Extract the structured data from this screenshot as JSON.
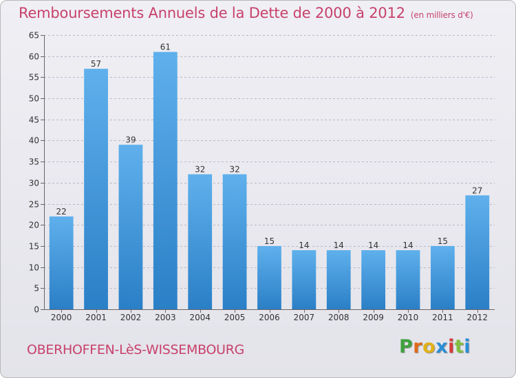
{
  "title": "Remboursements Annuels de la Dette de 2000 à 2012",
  "unit_note": "(en milliers d'€)",
  "commune": "OBERHOFFEN-LèS-WISSEMBOURG",
  "logo": {
    "letters": [
      "P",
      "r",
      "o",
      "x",
      "i",
      "t",
      "i"
    ],
    "colors": [
      "#3fa13f",
      "#e06a1a",
      "#e0b21a",
      "#2a8fd6",
      "#d83a3a",
      "#7fbf3f",
      "#2a8fd6"
    ]
  },
  "colors": {
    "title": "#c8416a",
    "bar_top": "#5fb0ec",
    "bar_bottom": "#2a7fc6",
    "grid": "#b8b8c8"
  },
  "chart_data": {
    "type": "bar",
    "categories": [
      "2000",
      "2001",
      "2002",
      "2003",
      "2004",
      "2005",
      "2006",
      "2007",
      "2008",
      "2009",
      "2010",
      "2011",
      "2012"
    ],
    "values": [
      22,
      57,
      39,
      61,
      32,
      32,
      15,
      14,
      14,
      14,
      14,
      15,
      27
    ],
    "data_labels": [
      "22",
      "57",
      "39",
      "61",
      "32",
      "32",
      "15",
      "14",
      "14",
      "14",
      "14",
      "15",
      "27"
    ],
    "ylim": [
      0,
      65
    ],
    "yticks": [
      0,
      5,
      10,
      15,
      20,
      25,
      30,
      35,
      40,
      45,
      50,
      55,
      60,
      65
    ],
    "ytick_labels": [
      "0",
      "5",
      "10",
      "15",
      "20",
      "25",
      "30",
      "35",
      "40",
      "45",
      "50",
      "55",
      "60",
      "65"
    ],
    "grid": true,
    "xlabel": "",
    "ylabel": ""
  }
}
